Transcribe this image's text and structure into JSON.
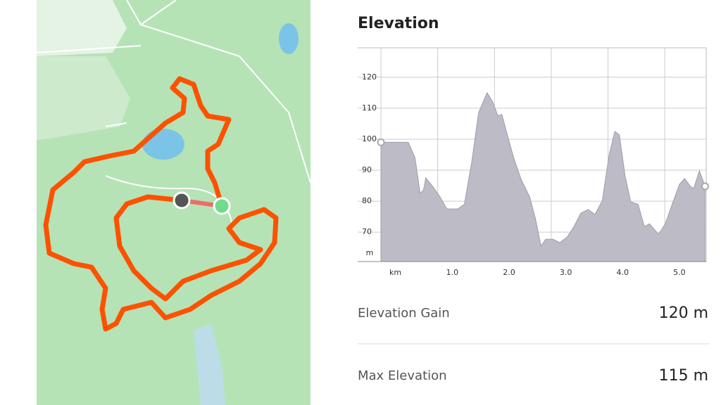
{
  "chart_data": {
    "type": "area",
    "title": "Elevation",
    "y_label": "m",
    "color": "#bcbbc6",
    "x": [
      0.0,
      0.48,
      0.6,
      0.69,
      0.75,
      0.79,
      0.91,
      1.04,
      1.16,
      1.35,
      1.47,
      1.6,
      1.72,
      1.87,
      1.97,
      2.06,
      2.13,
      2.22,
      2.34,
      2.47,
      2.62,
      2.72,
      2.82,
      2.9,
      3.03,
      3.15,
      3.28,
      3.4,
      3.52,
      3.65,
      3.77,
      3.9,
      4.02,
      4.12,
      4.2,
      4.3,
      4.4,
      4.53,
      4.64,
      4.73,
      4.89,
      5.01,
      5.13,
      5.26,
      5.35,
      5.45,
      5.51,
      5.61,
      5.71
    ],
    "values": [
      99,
      99,
      94,
      82.5,
      83.6,
      87.5,
      84.8,
      81.4,
      77.5,
      77.5,
      79,
      92.7,
      108.6,
      115,
      112,
      107.5,
      108,
      101.8,
      93.9,
      87,
      81.4,
      74.5,
      65.5,
      67.7,
      67.7,
      66.6,
      68.4,
      71.8,
      76.1,
      77.3,
      75.7,
      80.2,
      95,
      102.5,
      101.4,
      88.2,
      79.8,
      79,
      71.8,
      72.7,
      69.3,
      72.7,
      79,
      85.5,
      87.3,
      84.8,
      84.1,
      89.8,
      84.8
    ],
    "xlim": [
      -0.41,
      5.73
    ],
    "ylim": [
      60.5,
      129.5
    ],
    "xticks": [
      {
        "value": 0,
        "label": "km"
      },
      {
        "value": 1,
        "label": "1.0"
      },
      {
        "value": 2,
        "label": "2.0"
      },
      {
        "value": 3,
        "label": "3.0"
      },
      {
        "value": 4,
        "label": "4.0"
      },
      {
        "value": 5,
        "label": "5.0"
      }
    ],
    "yticks": [
      70,
      80,
      90,
      100,
      110,
      120
    ],
    "grid": true
  },
  "stats": [
    {
      "label": "Elevation Gain",
      "value": "120 m"
    },
    {
      "label": "Max Elevation",
      "value": "115 m"
    }
  ]
}
